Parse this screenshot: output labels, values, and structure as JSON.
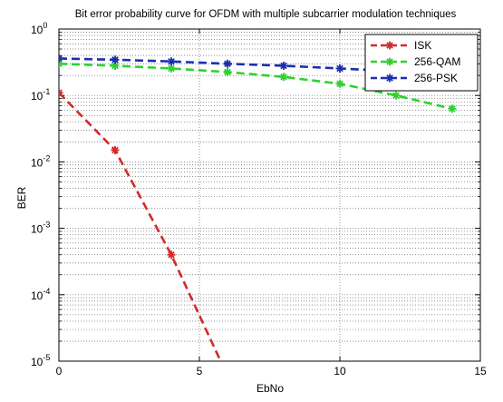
{
  "chart_data": {
    "type": "line",
    "title": "Bit error probability curve for OFDM with multiple subcarrier modulation techniques",
    "xlabel": "EbNo",
    "ylabel": "BER",
    "xlim": [
      0,
      15
    ],
    "ylim": [
      1e-05,
      1
    ],
    "yscale": "log",
    "grid": true,
    "legend_position": "top-right",
    "x_ticks": [
      "0",
      "5",
      "10",
      "15"
    ],
    "y_ticks": [
      {
        "base": "10",
        "exp": "0"
      },
      {
        "base": "10",
        "exp": "-1"
      },
      {
        "base": "10",
        "exp": "-2"
      },
      {
        "base": "10",
        "exp": "-3"
      },
      {
        "base": "10",
        "exp": "-4"
      },
      {
        "base": "10",
        "exp": "-5"
      }
    ],
    "series": [
      {
        "name": "ISK",
        "color": "#d42a2a",
        "x": [
          0,
          2,
          4,
          6
        ],
        "y": [
          0.11,
          0.015,
          0.0004,
          6e-06
        ]
      },
      {
        "name": "256-QAM",
        "color": "#2ed22e",
        "x": [
          0,
          2,
          4,
          6,
          8,
          10,
          12,
          14
        ],
        "y": [
          0.3,
          0.28,
          0.255,
          0.225,
          0.19,
          0.15,
          0.1,
          0.063
        ]
      },
      {
        "name": "256-PSK",
        "color": "#1a2fb0",
        "x": [
          0,
          2,
          4,
          6,
          8,
          10,
          12,
          14
        ],
        "y": [
          0.36,
          0.345,
          0.325,
          0.3,
          0.28,
          0.255,
          0.23,
          0.2
        ]
      }
    ]
  }
}
